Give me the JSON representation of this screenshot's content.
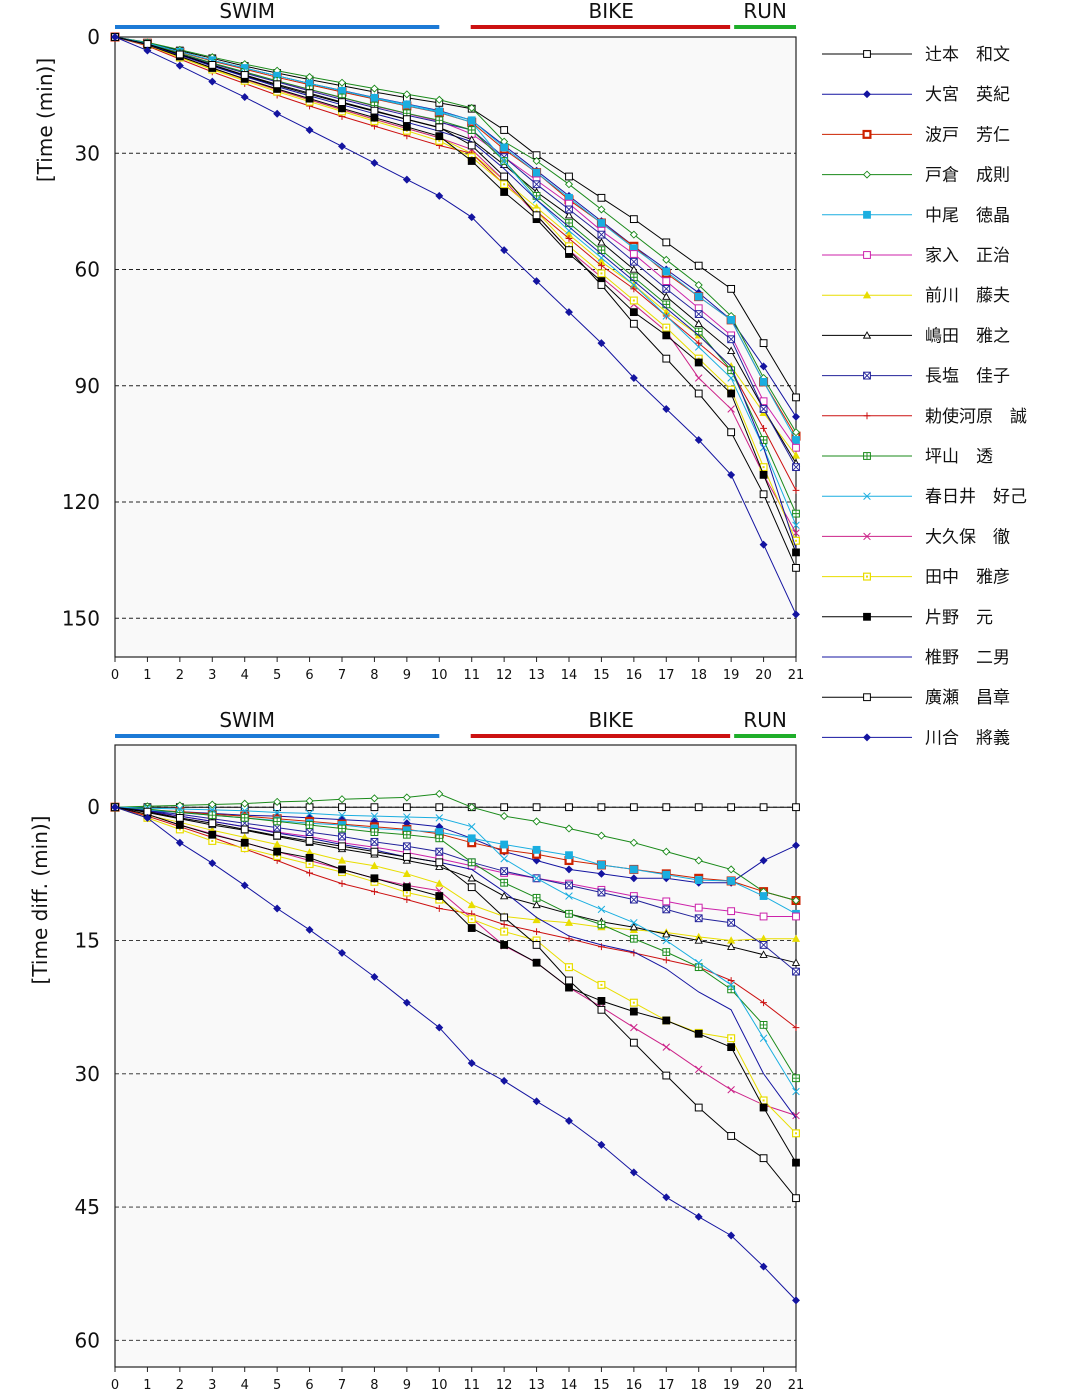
{
  "colors": {
    "swim": "#1c7ad6",
    "bike": "#cc1111",
    "run": "#1fae2a"
  },
  "legend": [
    {
      "name": "辻本　和文",
      "color": "#000000",
      "marker": "square-open"
    },
    {
      "name": "大宮　英紀",
      "color": "#1414a0",
      "marker": "diamond-filled"
    },
    {
      "name": "波戸　芳仁",
      "color": "#cc2200",
      "marker": "square-open-thick"
    },
    {
      "name": "戸倉　成則",
      "color": "#1a8a1a",
      "marker": "diamond-open"
    },
    {
      "name": "中尾　徳晶",
      "color": "#1aaee0",
      "marker": "square-filled"
    },
    {
      "name": "家入　正治",
      "color": "#cc22aa",
      "marker": "square-open"
    },
    {
      "name": "前川　藤夫",
      "color": "#e8dd00",
      "marker": "triangle-filled"
    },
    {
      "name": "嶋田　雅之",
      "color": "#000000",
      "marker": "triangle-open"
    },
    {
      "name": "長塩　佳子",
      "color": "#22229a",
      "marker": "square-x"
    },
    {
      "name": "勅使河原　誠",
      "color": "#cc1111",
      "marker": "plus"
    },
    {
      "name": "坪山　透",
      "color": "#1a8a1a",
      "marker": "square-plus"
    },
    {
      "name": "春日井　好己",
      "color": "#1aaee0",
      "marker": "x"
    },
    {
      "name": "大久保　徹",
      "color": "#cc2288",
      "marker": "x"
    },
    {
      "name": "田中　雅彦",
      "color": "#e8dd00",
      "marker": "square-open-dot"
    },
    {
      "name": "片野　元",
      "color": "#000000",
      "marker": "square-filled"
    },
    {
      "name": "椎野　二男",
      "color": "#1414a0",
      "marker": "none"
    },
    {
      "name": "廣瀬　昌章",
      "color": "#000000",
      "marker": "square-open"
    },
    {
      "name": "川合　將義",
      "color": "#1414a0",
      "marker": "diamond-filled"
    }
  ],
  "chart_data": [
    {
      "type": "line",
      "segments": [
        {
          "label": "SWIM",
          "from": 0,
          "to": 10
        },
        {
          "label": "BIKE",
          "from": 11,
          "to": 19
        },
        {
          "label": "RUN",
          "from": 19,
          "to": 21
        }
      ],
      "ylabel": "[Time (min)]",
      "xlabel": "",
      "x": [
        0,
        1,
        2,
        3,
        4,
        5,
        6,
        7,
        8,
        9,
        10,
        11,
        12,
        13,
        14,
        15,
        16,
        17,
        18,
        19,
        20,
        21
      ],
      "xlim": [
        0,
        21
      ],
      "ylim": [
        0,
        160
      ],
      "y_inverted": true,
      "yticks": [
        0,
        30,
        60,
        90,
        120,
        150
      ],
      "grid": "horizontal-dashed",
      "series": [
        {
          "name": "辻本　和文",
          "values": [
            0,
            1.5,
            3.5,
            5.5,
            7.5,
            9.3,
            11,
            12.6,
            14.2,
            15.7,
            17,
            18.5,
            24,
            30.5,
            36,
            41.5,
            47,
            53,
            59,
            65,
            79,
            93
          ]
        },
        {
          "name": "大宮　英紀",
          "values": [
            0,
            1.5,
            3.8,
            6,
            8,
            10,
            12,
            13.8,
            15.6,
            17.3,
            19,
            21.5,
            28,
            34.5,
            41,
            47.5,
            54,
            60,
            66,
            73,
            85,
            98
          ]
        },
        {
          "name": "波戸　芳仁",
          "values": [
            0,
            1.6,
            3.9,
            6.2,
            8.3,
            10.4,
            12.3,
            14.2,
            16,
            17.8,
            19.5,
            22,
            29,
            35,
            42,
            48,
            54,
            61,
            67,
            73,
            89,
            103
          ]
        },
        {
          "name": "戸倉　成則",
          "values": [
            0,
            1.4,
            3.3,
            5.2,
            7,
            8.7,
            10.3,
            11.8,
            13.3,
            14.8,
            16.2,
            18.3,
            27,
            32,
            38,
            44.5,
            51,
            57.5,
            64,
            72,
            88,
            102
          ]
        },
        {
          "name": "中尾　徳晶",
          "values": [
            0,
            1.6,
            3.8,
            6,
            8,
            10,
            12,
            13.9,
            15.7,
            17.4,
            19.2,
            21.5,
            28.5,
            35,
            41.5,
            48,
            54.5,
            60.5,
            67,
            73,
            89,
            104
          ]
        },
        {
          "name": "家入　正治",
          "values": [
            0,
            1.7,
            4.2,
            6.8,
            9.2,
            11.5,
            13.6,
            15.7,
            17.8,
            19.8,
            21.7,
            25,
            31,
            37,
            43,
            50,
            56,
            63,
            70,
            77,
            94,
            106
          ]
        },
        {
          "name": "前川　藤夫",
          "values": [
            0,
            2,
            5.2,
            8.2,
            11,
            13.7,
            16.3,
            18.8,
            21.3,
            23.6,
            26,
            30,
            37,
            44,
            51,
            58,
            64,
            71,
            77,
            85,
            97,
            108
          ]
        },
        {
          "name": "嶋田　雅之",
          "values": [
            0,
            1.8,
            4.6,
            7.4,
            10,
            12.5,
            14.8,
            17,
            19.2,
            21.3,
            23.4,
            26.5,
            33,
            40,
            46,
            53,
            60,
            67,
            74,
            81,
            96,
            110
          ]
        },
        {
          "name": "長塩　佳子",
          "values": [
            0,
            1.7,
            4.3,
            6.9,
            9.3,
            11.6,
            13.9,
            16.1,
            18.2,
            20.2,
            22,
            24,
            31,
            38,
            44.5,
            51,
            58,
            65,
            71.5,
            78,
            96,
            111
          ]
        },
        {
          "name": "勅使河原　誠",
          "values": [
            0,
            2.3,
            5.7,
            9,
            12,
            15,
            17.8,
            20.5,
            23,
            25.5,
            28,
            30,
            38,
            45,
            52,
            59,
            65,
            72,
            79,
            86,
            101,
            117
          ]
        },
        {
          "name": "坪山　透",
          "values": [
            0,
            1.7,
            4.2,
            6.7,
            9,
            11.3,
            13.5,
            15.6,
            17.7,
            19.7,
            21.5,
            24,
            32,
            41,
            48,
            55,
            62,
            69,
            76,
            86,
            104,
            123
          ]
        },
        {
          "name": "春日井　好己",
          "values": [
            0,
            1.6,
            3.8,
            6,
            8,
            10,
            12,
            13.9,
            15.8,
            17.7,
            19.4,
            22,
            32,
            42,
            50,
            57,
            64,
            72,
            80,
            88,
            106,
            126
          ]
        },
        {
          "name": "大久保　徹",
          "values": [
            0,
            2,
            5,
            8,
            10.9,
            13.6,
            16.2,
            18.7,
            21.2,
            23.6,
            26,
            29,
            37,
            46,
            55,
            62,
            69,
            76,
            88,
            96,
            113,
            128
          ]
        },
        {
          "name": "田中　雅彦",
          "values": [
            0,
            2.1,
            5.3,
            8.4,
            11.3,
            14.1,
            16.7,
            19.2,
            21.7,
            24.2,
            26.8,
            31,
            38,
            45,
            54,
            61,
            68,
            75,
            83,
            91,
            111,
            130
          ]
        },
        {
          "name": "片野　元",
          "values": [
            0,
            2,
            5,
            8,
            10.8,
            13.4,
            15.9,
            18.4,
            20.8,
            23.2,
            25.6,
            32,
            40,
            47,
            56,
            63,
            71,
            77,
            84,
            92,
            113,
            133
          ]
        },
        {
          "name": "椎野　二男",
          "values": [
            0,
            1.9,
            4.7,
            7.5,
            10.2,
            12.8,
            15.2,
            17.5,
            19.8,
            22,
            24.3,
            27,
            34,
            42,
            49,
            56,
            63,
            70,
            77,
            85,
            106,
            132
          ]
        },
        {
          "name": "廣瀬　昌章",
          "values": [
            0,
            1.8,
            4.5,
            7.2,
            9.8,
            12.2,
            14.5,
            16.8,
            19,
            21.2,
            23.3,
            28,
            36,
            46,
            55,
            64,
            74,
            83,
            92,
            102,
            118,
            137
          ]
        },
        {
          "name": "川合　將義",
          "values": [
            0,
            3.5,
            7.4,
            11.5,
            15.5,
            19.8,
            24,
            28.2,
            32.5,
            36.8,
            41,
            46.5,
            55,
            63,
            71,
            79,
            88,
            96,
            104,
            113,
            131,
            149
          ]
        }
      ]
    },
    {
      "type": "line",
      "segments": [
        {
          "label": "SWIM",
          "from": 0,
          "to": 10
        },
        {
          "label": "BIKE",
          "from": 11,
          "to": 19
        },
        {
          "label": "RUN",
          "from": 19,
          "to": 21
        }
      ],
      "ylabel": "[Time diff. (min)]",
      "xlabel": "",
      "x": [
        0,
        1,
        2,
        3,
        4,
        5,
        6,
        7,
        8,
        9,
        10,
        11,
        12,
        13,
        14,
        15,
        16,
        17,
        18,
        19,
        20,
        21
      ],
      "xlim": [
        0,
        21
      ],
      "ylim": [
        -7,
        63
      ],
      "y_inverted": true,
      "yticks": [
        0,
        15,
        30,
        45,
        60
      ],
      "grid": "horizontal-dashed",
      "series": [
        {
          "name": "辻本　和文",
          "values": [
            0,
            0,
            0,
            0,
            0,
            0,
            0,
            0,
            0,
            0,
            0,
            0,
            0,
            0,
            0,
            0,
            0,
            0,
            0,
            0,
            0,
            0
          ]
        },
        {
          "name": "大宮　英紀",
          "values": [
            0,
            0.5,
            0.5,
            0.7,
            0.9,
            1,
            1.2,
            1.4,
            1.6,
            1.8,
            2.2,
            3.5,
            5,
            6,
            7,
            7.5,
            8,
            8,
            8.5,
            8.5,
            6,
            4.3
          ]
        },
        {
          "name": "波戸　芳仁",
          "values": [
            0,
            0.3,
            0.5,
            0.8,
            1,
            1.3,
            1.6,
            1.9,
            2.2,
            2.5,
            3,
            4,
            4.8,
            5.3,
            6,
            6.5,
            7,
            7.5,
            8,
            8.3,
            9.5,
            10.5
          ]
        },
        {
          "name": "戸倉　成則",
          "values": [
            0,
            -0.1,
            -0.2,
            -0.3,
            -0.4,
            -0.6,
            -0.7,
            -0.9,
            -1,
            -1.1,
            -1.5,
            0,
            1,
            1.6,
            2.4,
            3.2,
            4,
            5,
            6,
            7,
            9.5,
            10.5
          ]
        },
        {
          "name": "中尾　徳晶",
          "values": [
            0,
            0.3,
            0.6,
            0.9,
            1.2,
            1.5,
            1.8,
            2,
            2.4,
            2.6,
            2.8,
            3.5,
            4.2,
            4.8,
            5.4,
            6.5,
            7,
            7.6,
            8.2,
            8.3,
            10,
            12
          ]
        },
        {
          "name": "家入　正治",
          "values": [
            0,
            0.5,
            1,
            1.6,
            2.2,
            2.8,
            3.3,
            4,
            4.5,
            5.1,
            5.8,
            6.6,
            7.4,
            8,
            8.6,
            9.3,
            10,
            10.6,
            11.3,
            11.7,
            12.3,
            12.3
          ]
        },
        {
          "name": "前川　藤夫",
          "values": [
            0,
            0.9,
            1.7,
            2.6,
            3.4,
            4.2,
            5.1,
            6,
            6.6,
            7.5,
            8.6,
            11,
            12.3,
            12.7,
            13,
            13.5,
            13.8,
            14.1,
            14.6,
            15,
            14.8,
            14.8
          ]
        },
        {
          "name": "嶋田　雅之",
          "values": [
            0,
            0.6,
            1.3,
            2,
            2.6,
            3.3,
            4,
            4.7,
            5.3,
            6,
            6.7,
            8,
            10,
            11,
            12,
            12.9,
            13.5,
            14.3,
            15,
            15.7,
            16.6,
            17.5
          ]
        },
        {
          "name": "長塩　佳子",
          "values": [
            0,
            0.4,
            0.8,
            1.3,
            1.8,
            2.3,
            2.8,
            3.3,
            3.9,
            4.4,
            5,
            6.2,
            7.2,
            8,
            8.8,
            9.6,
            10.4,
            11.5,
            12.5,
            13,
            15.5,
            18.5
          ]
        },
        {
          "name": "勅使河原　誠",
          "values": [
            0,
            1,
            2.2,
            3.4,
            4.7,
            6,
            7.4,
            8.6,
            9.5,
            10.4,
            11.4,
            12,
            13.2,
            14,
            14.8,
            15.7,
            16.4,
            17.2,
            18,
            19.5,
            22,
            24.8
          ]
        },
        {
          "name": "坪山　透",
          "values": [
            0,
            0.2,
            0.6,
            0.9,
            1.2,
            1.6,
            2,
            2.4,
            2.8,
            3.1,
            3.5,
            6.2,
            8.5,
            10.2,
            12,
            13.2,
            14.8,
            16.3,
            18,
            20.5,
            24.5,
            30.5
          ]
        },
        {
          "name": "春日井　好己",
          "values": [
            0,
            0.1,
            0.2,
            0.3,
            0.4,
            0.6,
            0.7,
            0.9,
            1,
            1.1,
            1.2,
            2.2,
            5.8,
            8,
            10,
            11.5,
            13,
            15,
            17.5,
            20,
            26,
            32
          ]
        },
        {
          "name": "大久保　徹",
          "values": [
            0,
            0.8,
            2,
            3,
            4,
            5,
            6,
            7,
            8,
            8.8,
            9.4,
            12.5,
            15.6,
            17.5,
            20.3,
            22.5,
            24.8,
            27,
            29.5,
            31.8,
            33.5,
            34.7
          ]
        },
        {
          "name": "田中　雅彦",
          "values": [
            0,
            1.2,
            2.5,
            3.8,
            4.6,
            5.5,
            6.4,
            7.3,
            8.4,
            9.6,
            10.4,
            12.6,
            14,
            15,
            18,
            20,
            22,
            24,
            25.4,
            26,
            33,
            36.7
          ]
        },
        {
          "name": "片野　元",
          "values": [
            0,
            0.8,
            2,
            3.1,
            4,
            5,
            5.7,
            7,
            8,
            9,
            10,
            13.6,
            15.5,
            17.5,
            20.3,
            21.8,
            23,
            24,
            25.5,
            27,
            33.8,
            40
          ]
        },
        {
          "name": "椎野　二男",
          "values": [
            0,
            0.4,
            1,
            1.6,
            2.2,
            2.9,
            3.5,
            4.2,
            4.8,
            5.6,
            6.2,
            7,
            9.5,
            12.4,
            14.5,
            15.5,
            16.3,
            18.2,
            20.8,
            22.8,
            30,
            35
          ]
        },
        {
          "name": "廣瀬　昌章",
          "values": [
            0,
            0.5,
            1.2,
            1.8,
            2.5,
            3.2,
            3.8,
            4.4,
            5,
            5.6,
            6.2,
            9,
            12.4,
            15.5,
            19.5,
            22.8,
            26.5,
            30.2,
            33.8,
            37,
            39.5,
            44
          ]
        },
        {
          "name": "川合　將義",
          "values": [
            0,
            1.2,
            4,
            6.3,
            8.8,
            11.4,
            13.8,
            16.4,
            19.1,
            22,
            24.8,
            28.8,
            30.8,
            33.1,
            35.3,
            38,
            41.1,
            43.9,
            46.1,
            48.2,
            51.7,
            55.5
          ]
        }
      ]
    }
  ]
}
